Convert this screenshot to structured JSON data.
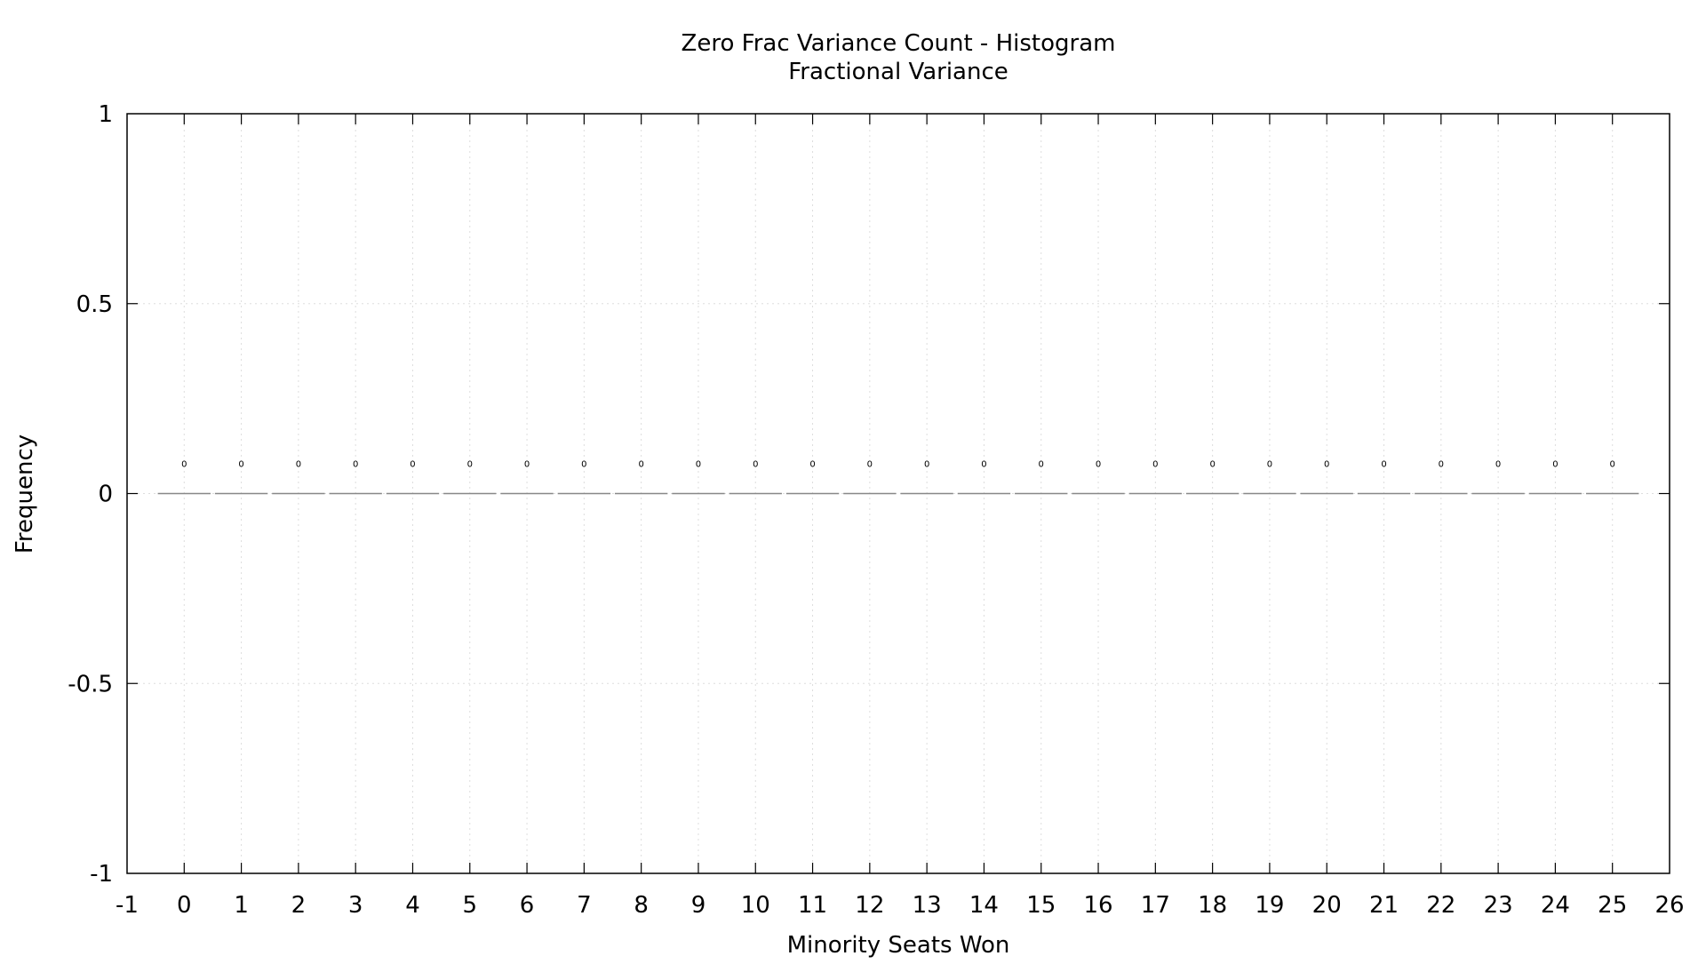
{
  "chart_data": {
    "type": "bar",
    "title": "Zero Frac Variance Count - Histogram",
    "subtitle": "Fractional Variance",
    "xlabel": "Minority Seats Won",
    "ylabel": "Frequency",
    "xlim": [
      -1,
      26
    ],
    "ylim": [
      -1,
      1
    ],
    "x_ticks": [
      "-1",
      "0",
      "1",
      "2",
      "3",
      "4",
      "5",
      "6",
      "7",
      "8",
      "9",
      "10",
      "11",
      "12",
      "13",
      "14",
      "15",
      "16",
      "17",
      "18",
      "19",
      "20",
      "21",
      "22",
      "23",
      "24",
      "25",
      "26"
    ],
    "y_ticks": [
      "-1",
      "-0.5",
      "0",
      "0.5",
      "1"
    ],
    "categories": [
      0,
      1,
      2,
      3,
      4,
      5,
      6,
      7,
      8,
      9,
      10,
      11,
      12,
      13,
      14,
      15,
      16,
      17,
      18,
      19,
      20,
      21,
      22,
      23,
      24,
      25
    ],
    "values": [
      0,
      0,
      0,
      0,
      0,
      0,
      0,
      0,
      0,
      0,
      0,
      0,
      0,
      0,
      0,
      0,
      0,
      0,
      0,
      0,
      0,
      0,
      0,
      0,
      0,
      0
    ],
    "data_labels": [
      "0",
      "0",
      "0",
      "0",
      "0",
      "0",
      "0",
      "0",
      "0",
      "0",
      "0",
      "0",
      "0",
      "0",
      "0",
      "0",
      "0",
      "0",
      "0",
      "0",
      "0",
      "0",
      "0",
      "0",
      "0",
      "0"
    ],
    "grid": true,
    "legend": false,
    "colors": {
      "bar_outline": "#888888",
      "axis": "#000000",
      "grid": "#dddddd"
    }
  }
}
